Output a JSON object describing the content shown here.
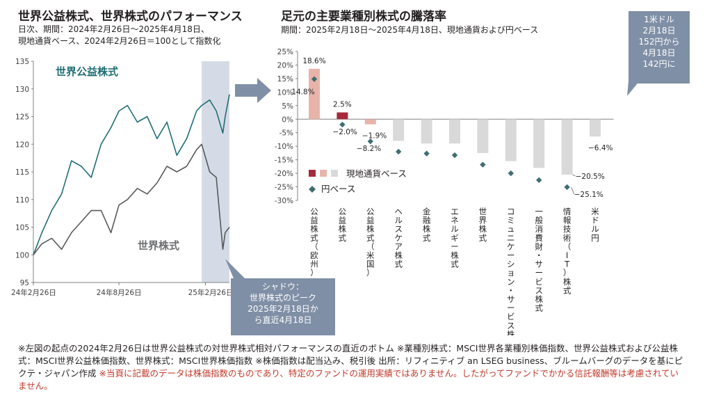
{
  "left": {
    "title": "世界公益株式、世界株式のパフォーマンス",
    "subtitle1": "日次、期間：2024年2月26日～2025年4月18日、",
    "subtitle2": "現地通貨ベース、2024年2月26日＝100として指数化"
  },
  "right": {
    "title": "足元の主要業種別株式の騰落率",
    "subtitle": "期間：2025年2月18日～2025年4月18日、現地通貨および円ベース"
  },
  "yen_note": [
    "1米ドル",
    "2月18日",
    "152円から",
    "4月18日",
    "142円に"
  ],
  "shadow_note": [
    "シャドウ：",
    "世界株式のピーク",
    "2025年2月18日か",
    "ら直近4月18日"
  ],
  "footer": {
    "text": "※左図の起点の2024年2月26日は世界公益株式の対世界株式相対パフォーマンスの直近のボトム ※業種別株式：MSCI世界各業種別株価指数、世界公益株式および公益株式：MSCI世界公益株価指数、世界株式：MSCI世界株価指数 ※株価指数は配当込み、税引後 出所：リフィニティブ an LSEG business、ブルームバーグのデータを基にピクテ・ジャパン作成 ",
    "red": "※当頁に記載のデータは株価指数のものであり、特定のファンドの運用実績ではありません。したがってファンドでかかる信託報酬等は考慮されていません。"
  },
  "chart_data": [
    {
      "type": "line",
      "x_ticks": [
        "24年2月26日",
        "24年8月26日",
        "25年2月26日"
      ],
      "ylim": [
        95,
        135
      ],
      "y_ticks": [
        95,
        100,
        105,
        110,
        115,
        120,
        125,
        130,
        135
      ],
      "series": [
        {
          "name": "世界公益株式",
          "color": "#1f6e74",
          "x": [
            "2024-02-26",
            "2024-03-15",
            "2024-04-05",
            "2024-04-26",
            "2024-05-17",
            "2024-06-07",
            "2024-06-28",
            "2024-07-19",
            "2024-08-09",
            "2024-08-26",
            "2024-09-13",
            "2024-10-04",
            "2024-10-25",
            "2024-11-15",
            "2024-12-06",
            "2024-12-27",
            "2025-01-17",
            "2025-02-07",
            "2025-02-18",
            "2025-03-07",
            "2025-03-21",
            "2025-04-04",
            "2025-04-09",
            "2025-04-18"
          ],
          "values": [
            100,
            104,
            108,
            111,
            117,
            116,
            114,
            120,
            123,
            126,
            127,
            124,
            125,
            121,
            124,
            118,
            121,
            126,
            127,
            128,
            126,
            122,
            125,
            129
          ]
        },
        {
          "name": "世界株式",
          "color": "#58595b",
          "x": [
            "2024-02-26",
            "2024-03-15",
            "2024-04-05",
            "2024-04-26",
            "2024-05-17",
            "2024-06-07",
            "2024-06-28",
            "2024-07-19",
            "2024-08-09",
            "2024-08-26",
            "2024-09-13",
            "2024-10-04",
            "2024-10-25",
            "2024-11-15",
            "2024-12-06",
            "2024-12-27",
            "2025-01-17",
            "2025-02-07",
            "2025-02-18",
            "2025-03-07",
            "2025-03-21",
            "2025-04-04",
            "2025-04-09",
            "2025-04-18"
          ],
          "values": [
            100,
            102,
            103,
            101,
            104,
            106,
            108,
            108,
            104,
            109,
            110,
            112,
            111,
            113,
            116,
            115,
            116,
            119,
            120,
            115,
            114,
            101,
            104,
            105
          ]
        }
      ],
      "shaded_period": [
        "2025-02-18",
        "2025-04-18"
      ]
    },
    {
      "type": "bar",
      "categories": [
        "公益株式（欧州）",
        "公益株式",
        "公益株式（米国）",
        "ヘルスケア株式",
        "金融株式",
        "エネルギー株式",
        "世界株式",
        "コミュニケーション・サービス株式",
        "一般消費財・サービス株式",
        "情報技術（IT）株式",
        "米ドル円"
      ],
      "ylim": [
        -30,
        25
      ],
      "y_ticks": [
        25,
        20,
        15,
        10,
        5,
        0,
        -5,
        -10,
        -15,
        -20,
        -25,
        -30
      ],
      "y_unit": "%",
      "series": [
        {
          "name": "現地通貨ベース",
          "values": [
            18.6,
            2.5,
            -1.9,
            -8.0,
            -9.0,
            -9.0,
            -12.5,
            -15.5,
            -18.0,
            -20.5,
            -6.4
          ],
          "colors": [
            "#e8b4aa",
            "#a52a3a",
            "#e8b4aa",
            "#d9d9d9",
            "#d9d9d9",
            "#d9d9d9",
            "#d9d9d9",
            "#d9d9d9",
            "#d9d9d9",
            "#d9d9d9",
            "#d9d9d9"
          ]
        },
        {
          "name": "円ベース",
          "marker": "diamond",
          "color": "#3f6e72",
          "values": [
            14.8,
            -2.0,
            -8.2,
            -12.0,
            -12.7,
            -13.3,
            -16.8,
            -20.0,
            -22.5,
            -25.1,
            null
          ]
        }
      ],
      "data_labels": [
        {
          "index": 0,
          "series": 0,
          "text": "18.6%"
        },
        {
          "index": 0,
          "series": 1,
          "text": "14.8%"
        },
        {
          "index": 1,
          "series": 0,
          "text": "2.5%"
        },
        {
          "index": 1,
          "series": 1,
          "text": "−2.0%"
        },
        {
          "index": 2,
          "series": 0,
          "text": "−1.9%"
        },
        {
          "index": 2,
          "series": 1,
          "text": "−8.2%"
        },
        {
          "index": 9,
          "series": 0,
          "text": "−20.5%"
        },
        {
          "index": 9,
          "series": 1,
          "text": "−25.1%"
        },
        {
          "index": 10,
          "series": 0,
          "text": "−6.4%"
        }
      ],
      "legend": [
        {
          "label": "現地通貨ベース",
          "swatches": [
            "#a52a3a",
            "#e8b4aa",
            "#d9d9d9"
          ]
        },
        {
          "label": "円ベース",
          "marker": "diamond",
          "color": "#3f6e72"
        }
      ],
      "legend_position": "lower-left"
    }
  ]
}
